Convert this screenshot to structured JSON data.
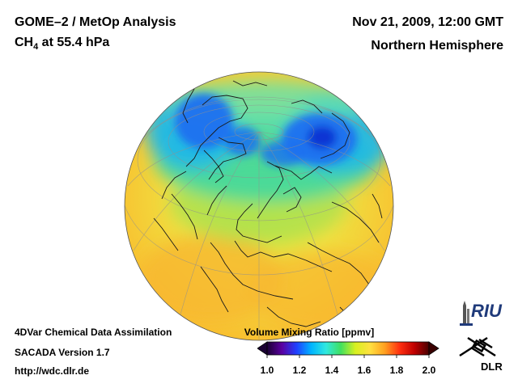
{
  "header": {
    "title": "GOME–2 / MetOp Analysis",
    "species_main": "CH",
    "species_sub": "4",
    "species_rest": " at 55.4 hPa",
    "datetime": "Nov 21, 2009, 12:00 GMT",
    "region": "Northern Hemisphere"
  },
  "footer": {
    "line1": "4DVar Chemical Data Assimilation",
    "line2": "SACADA Version 1.7",
    "line3": "http://wdc.dlr.de"
  },
  "colorbar": {
    "title": "Volume Mixing Ratio [ppmv]",
    "ticks": [
      "1.0",
      "1.2",
      "1.4",
      "1.6",
      "1.8",
      "2.0"
    ],
    "min": 1.0,
    "max": 2.0,
    "colors": [
      "#1a0033",
      "#5a00a0",
      "#2040ff",
      "#00b4ff",
      "#30e8e0",
      "#40e060",
      "#d8f020",
      "#ffe040",
      "#ffa020",
      "#ff3010",
      "#c00000",
      "#4a0000"
    ],
    "under_color": "#1a0033",
    "over_color": "#3a0000"
  },
  "logos": {
    "riu": "RIU",
    "dlr": "DLR"
  },
  "map": {
    "projection": "orthographic",
    "center": "North Pole"
  }
}
